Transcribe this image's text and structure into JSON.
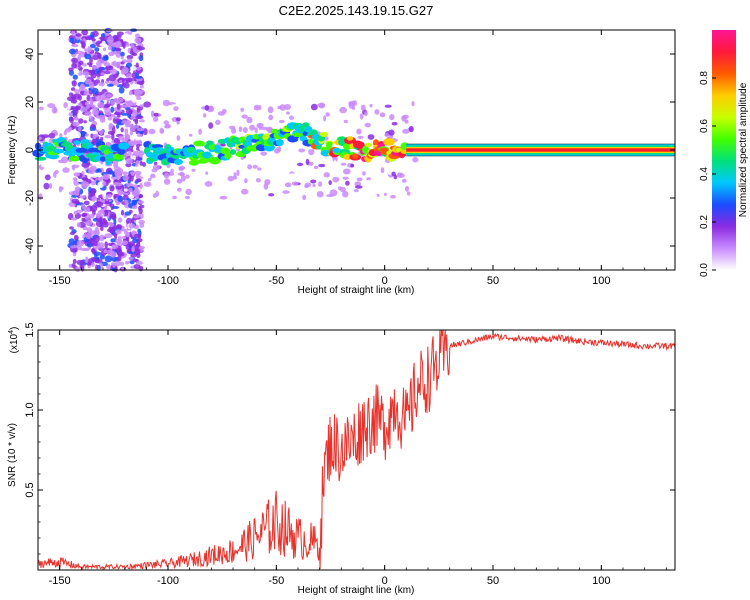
{
  "title": "C2E2.2025.143.19.15.G27",
  "colors": {
    "snr_line": "#e8322b",
    "tick_mark": "#000000",
    "colorbar": [
      "#ffffff",
      "#c98aff",
      "#8a2be2",
      "#1b4dff",
      "#00c8ff",
      "#00e07a",
      "#44ff00",
      "#c8ff00",
      "#ffcc00",
      "#ff5a00",
      "#ff1a3c",
      "#ff1493"
    ]
  },
  "chart_data": [
    {
      "type": "heatmap",
      "title": "C2E2.2025.143.19.15.G27",
      "xlabel": "Height of straight line (km)",
      "ylabel": "Frequency (Hz)",
      "xlim": [
        -160,
        134
      ],
      "ylim": [
        -50,
        50
      ],
      "xticks": [
        "-150",
        "-100",
        "-50",
        "0",
        "50",
        "100"
      ],
      "yticks": [
        "-40",
        "-20",
        "0",
        "20",
        "40"
      ],
      "colorbar": {
        "label": "Normalized spectral amplitude",
        "range": [
          0,
          1
        ],
        "ticks": [
          "0.0",
          "0.2",
          "0.4",
          "0.6",
          "0.8"
        ]
      },
      "ridge": [
        {
          "x": -160,
          "y": 0,
          "amp": 0.45
        },
        {
          "x": -150,
          "y": 0,
          "amp": 0.45
        },
        {
          "x": -100,
          "y": -2,
          "amp": 0.45
        },
        {
          "x": -80,
          "y": -1,
          "amp": 0.5
        },
        {
          "x": -60,
          "y": 3,
          "amp": 0.5
        },
        {
          "x": -45,
          "y": 6,
          "amp": 0.5
        },
        {
          "x": -36,
          "y": 7,
          "amp": 0.5
        },
        {
          "x": -33,
          "y": 4,
          "amp": 0.7
        },
        {
          "x": -25,
          "y": 2,
          "amp": 0.8
        },
        {
          "x": -10,
          "y": 0,
          "amp": 0.85
        },
        {
          "x": 10,
          "y": 0,
          "amp": 0.9
        },
        {
          "x": 134,
          "y": 0,
          "amp": 0.92
        }
      ]
    },
    {
      "type": "line",
      "xlabel": "Height of straight line (km)",
      "ylabel": "SNR (10 * v/v)",
      "y_multiplier": "(x10",
      "y_exponent": "4",
      "y_multiplier_close": ")",
      "xlim": [
        -160,
        134
      ],
      "ylim": [
        0,
        1.5
      ],
      "xticks": [
        "-150",
        "-100",
        "-50",
        "0",
        "50",
        "100"
      ],
      "yticks": [
        "0.5",
        "1.0",
        "1.5"
      ],
      "series": [
        {
          "x": [
            -160,
            -150,
            -140,
            -130,
            -120,
            -110,
            -100,
            -90,
            -80,
            -70,
            -60,
            -55,
            -50,
            -45,
            -40,
            -35,
            -30,
            -28,
            -25,
            -20,
            -15,
            -10,
            -5,
            0,
            5,
            10,
            15,
            20,
            25,
            30,
            40,
            50,
            60,
            70,
            80,
            90,
            100,
            110,
            120,
            134
          ],
          "y": [
            0.04,
            0.05,
            0.02,
            0.02,
            0.02,
            0.03,
            0.04,
            0.06,
            0.09,
            0.12,
            0.2,
            0.25,
            0.3,
            0.25,
            0.2,
            0.18,
            0.16,
            0.6,
            0.8,
            0.75,
            0.8,
            0.9,
            0.95,
            0.9,
            1.05,
            0.9,
            1.15,
            1.2,
            1.3,
            1.4,
            1.43,
            1.46,
            1.45,
            1.44,
            1.45,
            1.43,
            1.42,
            1.41,
            1.4,
            1.4
          ]
        }
      ]
    }
  ]
}
